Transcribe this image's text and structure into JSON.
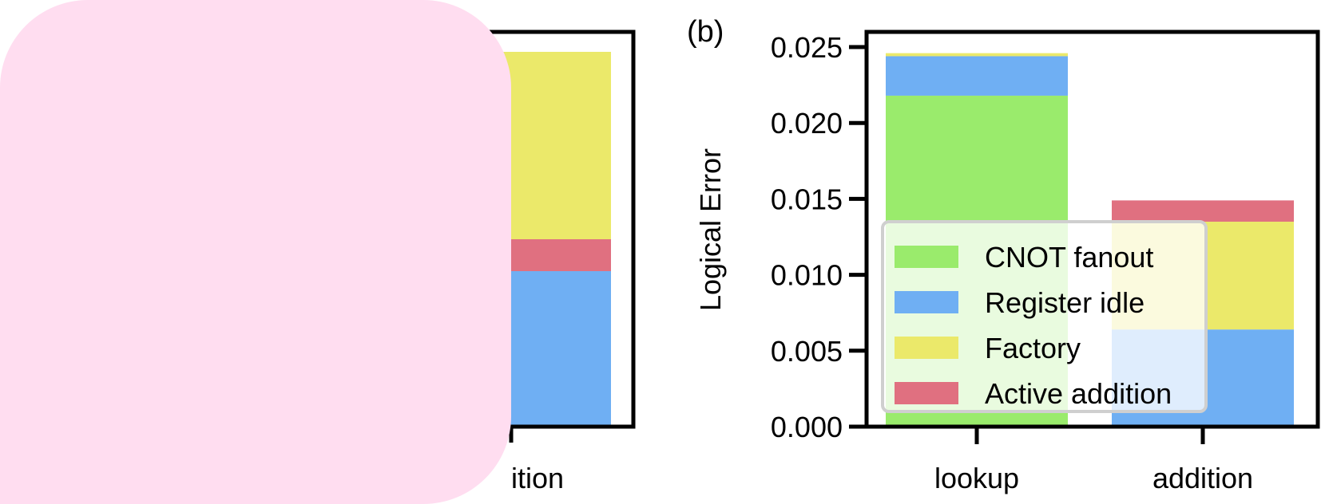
{
  "panel_a": {
    "visible_tick": "ition",
    "colors": {
      "factory": "#EBE96A",
      "active_addition": "#E07080",
      "register_idle": "#6FAFF3"
    }
  },
  "overlay": {
    "color": "#FFDDF0"
  },
  "panel_b": {
    "label": "(b)",
    "ylabel": "Logical Error"
  },
  "chart_data": {
    "type": "bar",
    "stacked": true,
    "categories": [
      "lookup",
      "addition"
    ],
    "series": [
      {
        "name": "CNOT fanout",
        "color": "#9AEB6C",
        "values": [
          0.0218,
          0.0
        ]
      },
      {
        "name": "Register idle",
        "color": "#6FAFF3",
        "values": [
          0.0026,
          0.0064
        ]
      },
      {
        "name": "Factory",
        "color": "#EBE96A",
        "values": [
          0.0002,
          0.0071
        ]
      },
      {
        "name": "Active addition",
        "color": "#E07080",
        "values": [
          0.0,
          0.0014
        ]
      }
    ],
    "yticks": [
      "0.000",
      "0.005",
      "0.010",
      "0.015",
      "0.020",
      "0.025"
    ],
    "ylim": [
      0,
      0.026
    ],
    "ylabel": "Logical Error",
    "xlabel": "",
    "legend": {
      "placement": "lower-left"
    }
  }
}
